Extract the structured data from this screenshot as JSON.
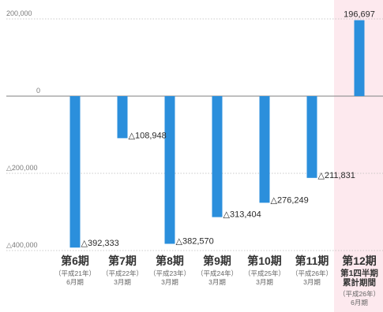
{
  "chart_data": {
    "type": "bar",
    "ylim": [
      -400000,
      200000
    ],
    "yticks": [
      {
        "value": 200000,
        "label": "200,000"
      },
      {
        "value": 0,
        "label": "0"
      },
      {
        "value": -200000,
        "label": "△200,000"
      },
      {
        "value": -400000,
        "label": "△400,000"
      }
    ],
    "grid": true,
    "colors": {
      "bar": "#2b8fdc",
      "highlight_band": "#fde9ee",
      "zero_line": "#999999",
      "grid": "#bbbbbb"
    },
    "categories": [
      {
        "name": "第6期",
        "sub": [
          "平成21年",
          "6月期"
        ]
      },
      {
        "name": "第7期",
        "sub": [
          "平成22年",
          "3月期"
        ]
      },
      {
        "name": "第8期",
        "sub": [
          "平成23年",
          "3月期"
        ]
      },
      {
        "name": "第9期",
        "sub": [
          "平成24年",
          "3月期"
        ]
      },
      {
        "name": "第10期",
        "sub": [
          "平成25年",
          "3月期"
        ]
      },
      {
        "name": "第11期",
        "sub": [
          "平成26年",
          "3月期"
        ]
      },
      {
        "name": "第12期",
        "extra": [
          "第1四半期",
          "累計期間"
        ],
        "sub": [
          "平成26年",
          "6月期"
        ],
        "highlight": true
      }
    ],
    "values": [
      -392333,
      -108948,
      -382570,
      -313404,
      -276249,
      -211831,
      196697
    ],
    "data_labels": [
      "△392,333",
      "△108,948",
      "△382,570",
      "△313,404",
      "△276,249",
      "△211,831",
      "196,697"
    ]
  }
}
